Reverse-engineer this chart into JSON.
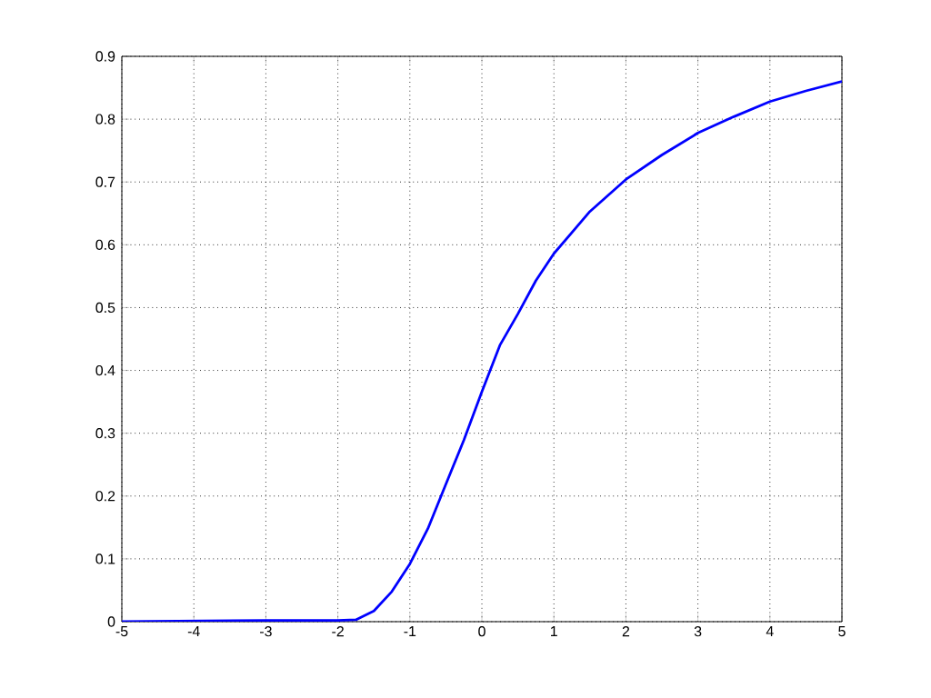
{
  "chart_data": {
    "type": "line",
    "x": [
      -5,
      -3,
      -2,
      -1.75,
      -1.5,
      -1.25,
      -1,
      -0.75,
      -0.5,
      -0.25,
      0,
      0.25,
      0.5,
      0.75,
      1,
      1.5,
      2,
      2.5,
      3,
      3.5,
      4,
      4.5,
      5
    ],
    "series": [
      {
        "color": "#0000ff",
        "values": [
          0,
          0.002,
          0.002,
          0.003,
          0.017,
          0.048,
          0.092,
          0.148,
          0.219,
          0.289,
          0.366,
          0.44,
          0.49,
          0.543,
          0.586,
          0.653,
          0.704,
          0.743,
          0.778,
          0.804,
          0.828,
          0.845,
          0.86
        ]
      }
    ],
    "xlim": [
      -5,
      5
    ],
    "ylim": [
      0,
      0.9
    ],
    "xticks": [
      -5,
      -4,
      -3,
      -2,
      -1,
      0,
      1,
      2,
      3,
      4,
      5
    ],
    "yticks": [
      0,
      0.1,
      0.2,
      0.3,
      0.4,
      0.5,
      0.6,
      0.7,
      0.8,
      0.9
    ],
    "grid": true,
    "legend": false,
    "marker": "none",
    "line_style": "solid"
  }
}
